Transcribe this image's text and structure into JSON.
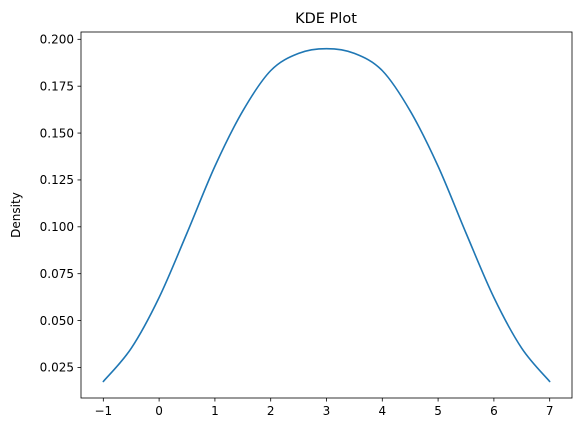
{
  "chart_data": {
    "type": "line",
    "title": "KDE Plot",
    "xlabel": "",
    "ylabel": "Density",
    "xlim": [
      -1.4,
      7.4
    ],
    "ylim": [
      0.0087,
      0.2039
    ],
    "xticks": [
      -1,
      0,
      1,
      2,
      3,
      4,
      5,
      6,
      7
    ],
    "xtick_labels": [
      "−1",
      "0",
      "1",
      "2",
      "3",
      "4",
      "5",
      "6",
      "7"
    ],
    "yticks": [
      0.025,
      0.05,
      0.075,
      0.1,
      0.125,
      0.15,
      0.175,
      0.2
    ],
    "ytick_labels": [
      "0.025",
      "0.050",
      "0.075",
      "0.100",
      "0.125",
      "0.150",
      "0.175",
      "0.200"
    ],
    "grid": false,
    "legend": "none",
    "series": [
      {
        "color": "#1f77b4",
        "x": [
          -1.0,
          -0.5,
          0.0,
          0.5,
          1.0,
          1.5,
          2.0,
          2.5,
          3.0,
          3.5,
          4.0,
          4.5,
          5.0,
          5.5,
          6.0,
          6.5,
          7.0
        ],
        "y": [
          0.0175,
          0.0352,
          0.0623,
          0.0967,
          0.1323,
          0.1618,
          0.1833,
          0.1925,
          0.195,
          0.1925,
          0.1833,
          0.1618,
          0.1323,
          0.0967,
          0.0623,
          0.0352,
          0.0175
        ]
      }
    ]
  }
}
